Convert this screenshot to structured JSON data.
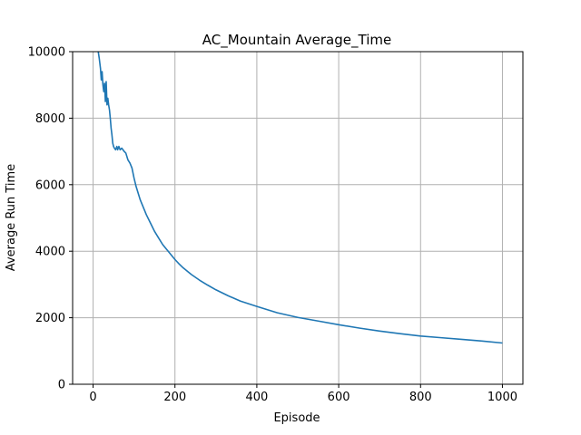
{
  "chart_data": {
    "type": "line",
    "title": "AC_Mountain Average_Time",
    "xlabel": "Episode",
    "ylabel": "Average Run Time",
    "xlim": [
      -50,
      1050
    ],
    "ylim": [
      0,
      10000
    ],
    "xticks": [
      0,
      200,
      400,
      600,
      800,
      1000
    ],
    "yticks": [
      0,
      2000,
      4000,
      6000,
      8000,
      10000
    ],
    "xtick_labels": [
      "0",
      "200",
      "400",
      "600",
      "800",
      "1000"
    ],
    "ytick_labels": [
      "0",
      "2000",
      "4000",
      "6000",
      "8000",
      "10000"
    ],
    "grid": true,
    "legend": "none",
    "series": [
      {
        "color": "#1f77b4",
        "x": [
          1,
          12,
          15,
          18,
          20,
          22,
          24,
          26,
          28,
          30,
          32,
          34,
          36,
          38,
          40,
          42,
          44,
          46,
          48,
          50,
          52,
          55,
          58,
          60,
          63,
          66,
          70,
          73,
          76,
          80,
          85,
          90,
          95,
          100,
          105,
          110,
          115,
          120,
          125,
          130,
          140,
          150,
          160,
          170,
          180,
          190,
          200,
          210,
          220,
          240,
          260,
          280,
          300,
          330,
          360,
          400,
          450,
          500,
          550,
          600,
          650,
          700,
          750,
          800,
          850,
          900,
          950,
          1000
        ],
        "y": [
          11500,
          10050,
          9800,
          9500,
          9150,
          9400,
          9000,
          8800,
          9050,
          8500,
          9100,
          8400,
          8600,
          8400,
          8250,
          8000,
          7700,
          7500,
          7250,
          7150,
          7100,
          7050,
          7150,
          7050,
          7150,
          7050,
          7100,
          7050,
          7000,
          6950,
          6750,
          6650,
          6500,
          6200,
          5950,
          5750,
          5550,
          5400,
          5250,
          5100,
          4850,
          4600,
          4400,
          4200,
          4050,
          3900,
          3750,
          3620,
          3500,
          3300,
          3130,
          2980,
          2840,
          2660,
          2500,
          2340,
          2150,
          2010,
          1900,
          1790,
          1690,
          1600,
          1520,
          1450,
          1400,
          1350,
          1300,
          1240
        ]
      }
    ]
  }
}
